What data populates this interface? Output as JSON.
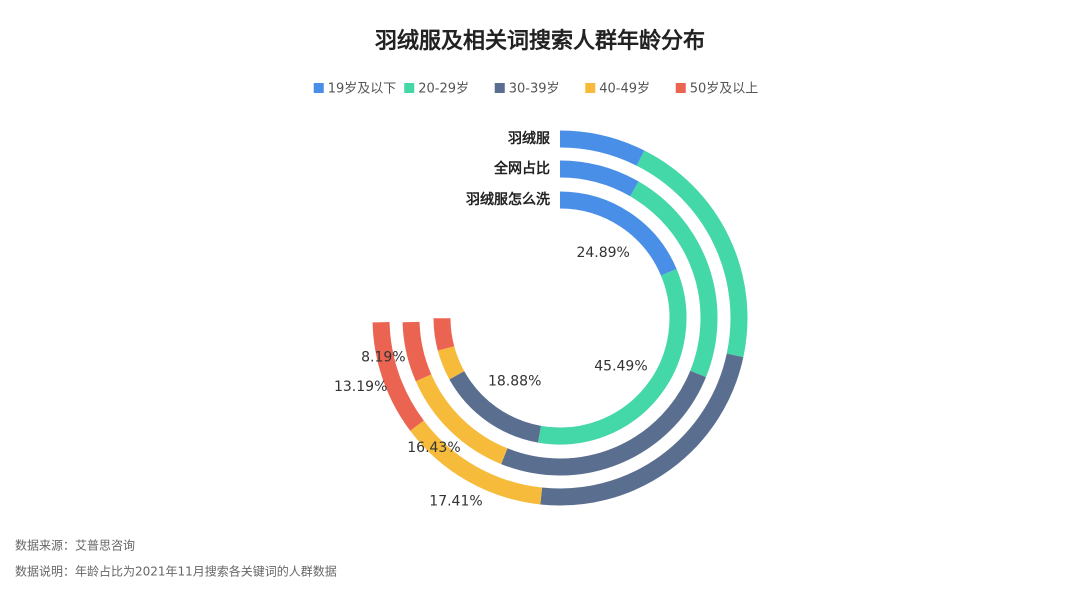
{
  "chart_data": {
    "type": "radial-bar",
    "title": "羽绒服及相关词搜索人群年龄分布",
    "categories": [
      "羽绒服",
      "全网占比",
      "羽绒服怎么洗"
    ],
    "series": [
      {
        "name": "19岁及以下",
        "color": "#4a8fe7",
        "values": [
          9.9,
          11.1,
          24.89
        ],
        "value_labels": [
          null,
          null,
          "24.89%"
        ]
      },
      {
        "name": "20-29岁",
        "color": "#44d7a8",
        "values": [
          27.9,
          30.4,
          45.49
        ],
        "value_labels": [
          null,
          null,
          "45.49%"
        ]
      },
      {
        "name": "30-39岁",
        "color": "#5a6e8f",
        "values": [
          31.1,
          33.3,
          18.88
        ],
        "value_labels": [
          null,
          null,
          "18.88%"
        ]
      },
      {
        "name": "40-49岁",
        "color": "#f7bb3c",
        "values": [
          17.41,
          16.43,
          5.2
        ],
        "value_labels": [
          "17.41%",
          "16.43%",
          null
        ]
      },
      {
        "name": "50岁及以上",
        "color": "#eb6452",
        "values": [
          13.19,
          8.19,
          5.5
        ],
        "value_labels": [
          "13.19%",
          "8.19%",
          null
        ]
      }
    ],
    "angle_max": 100,
    "source": "数据来源：艾普思咨询",
    "note": "数据说明：年龄占比为2021年11月搜索各关键词的人群数据"
  }
}
